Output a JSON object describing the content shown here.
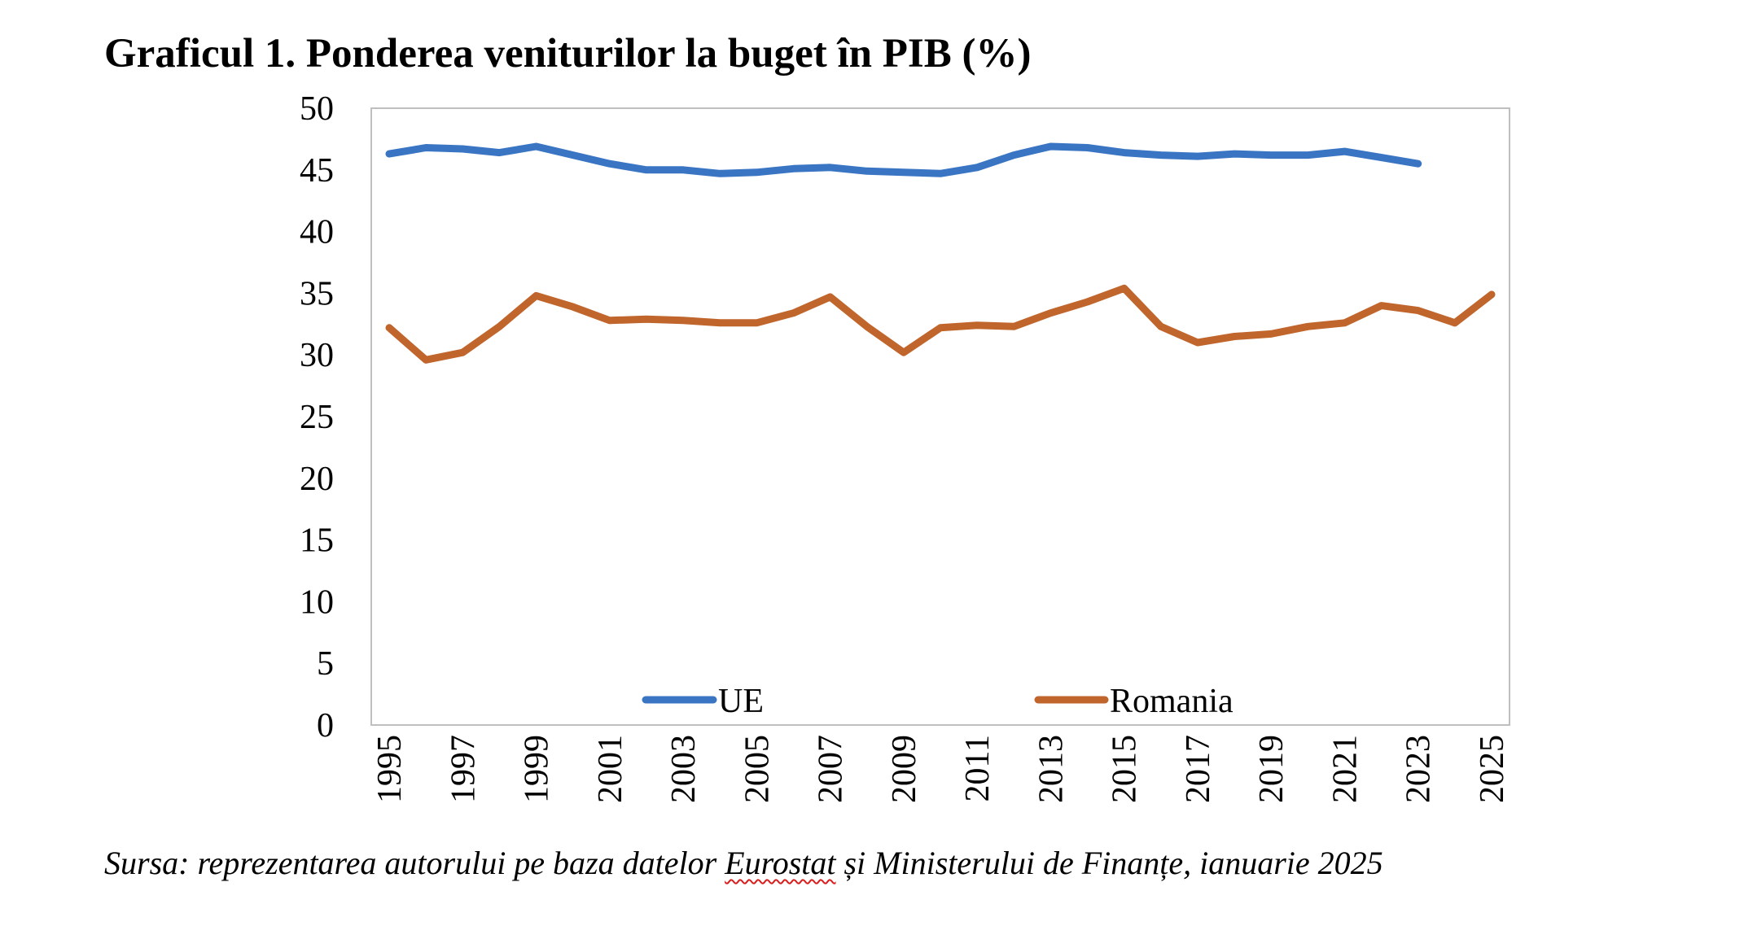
{
  "chart_data": {
    "type": "line",
    "title": "Graficul 1. Ponderea veniturilor la buget în PIB (%)",
    "xlabel": "",
    "ylabel": "",
    "ylim": [
      0,
      50
    ],
    "yticks": [
      0,
      5,
      10,
      15,
      20,
      25,
      30,
      35,
      40,
      45,
      50
    ],
    "xlim": [
      1995,
      2025
    ],
    "xticks": [
      1995,
      1997,
      1999,
      2001,
      2003,
      2005,
      2007,
      2009,
      2011,
      2013,
      2015,
      2017,
      2019,
      2021,
      2023,
      2025
    ],
    "grid": false,
    "legend_position": "bottom-inside",
    "series": [
      {
        "name": "UE",
        "color": "#3a75c4",
        "x": [
          1995,
          1996,
          1997,
          1998,
          1999,
          2000,
          2001,
          2002,
          2003,
          2004,
          2005,
          2006,
          2007,
          2008,
          2009,
          2010,
          2011,
          2012,
          2013,
          2014,
          2015,
          2016,
          2017,
          2018,
          2019,
          2020,
          2021,
          2022,
          2023
        ],
        "values": [
          46.3,
          46.8,
          46.7,
          46.4,
          46.9,
          46.2,
          45.5,
          45.0,
          45.0,
          44.7,
          44.8,
          45.1,
          45.2,
          44.9,
          44.8,
          44.7,
          45.2,
          46.2,
          46.9,
          46.8,
          46.4,
          46.2,
          46.1,
          46.3,
          46.2,
          46.2,
          46.5,
          46.0,
          45.5
        ]
      },
      {
        "name": "Romania",
        "color": "#c0652c",
        "x": [
          1995,
          1996,
          1997,
          1998,
          1999,
          2000,
          2001,
          2002,
          2003,
          2004,
          2005,
          2006,
          2007,
          2008,
          2009,
          2010,
          2011,
          2012,
          2013,
          2014,
          2015,
          2016,
          2017,
          2018,
          2019,
          2020,
          2021,
          2022,
          2023,
          2024,
          2025
        ],
        "values": [
          32.2,
          29.6,
          30.2,
          32.3,
          34.8,
          33.9,
          32.8,
          32.9,
          32.8,
          32.6,
          32.6,
          33.4,
          34.7,
          32.3,
          30.2,
          32.2,
          32.4,
          32.3,
          33.4,
          34.3,
          35.4,
          32.3,
          31.0,
          31.5,
          31.7,
          32.3,
          32.6,
          34.0,
          33.6,
          32.6,
          34.9
        ]
      }
    ],
    "source": {
      "before": "Sursa: reprezentarea autorului pe baza datelor ",
      "highlight": "Eurostat",
      "after": " și Ministerului de Finanțe, ianuarie 2025"
    }
  }
}
